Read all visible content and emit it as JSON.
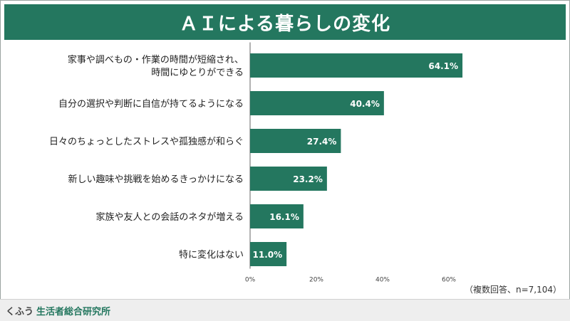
{
  "title": "ＡＩによる暮らしの変化",
  "note": "（複数回答、n=7,104）",
  "footer": {
    "brand_prefix": "くふう",
    "brand_name": "生活者総合研究所"
  },
  "colors": {
    "bar": "#24775f",
    "title_bg": "#24775f"
  },
  "chart_data": {
    "type": "bar",
    "orientation": "horizontal",
    "categories": [
      [
        "家事や調べもの・作業の時間が短縮され、",
        "時間にゆとりができる"
      ],
      [
        "自分の選択や判断に自信が持てるようになる"
      ],
      [
        "日々のちょっとしたストレスや孤独感が和らぐ"
      ],
      [
        "新しい趣味や挑戦を始めるきっかけになる"
      ],
      [
        "家族や友人との会話のネタが増える"
      ],
      [
        "特に変化はない"
      ]
    ],
    "values": [
      64.1,
      40.4,
      27.4,
      23.2,
      16.1,
      11.0
    ],
    "value_labels": [
      "64.1%",
      "40.4%",
      "27.4%",
      "23.2%",
      "16.1%",
      "11.0%"
    ],
    "xlim": [
      0,
      70
    ],
    "xticks": [
      0,
      20,
      40,
      60
    ],
    "xtick_labels": [
      "0%",
      "20%",
      "40%",
      "60%"
    ],
    "grid": false
  }
}
